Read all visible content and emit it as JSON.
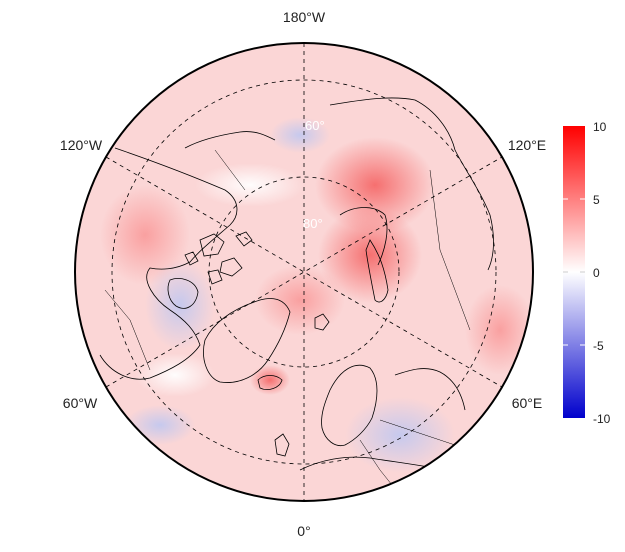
{
  "map": {
    "projection": "north polar stereographic",
    "lon_labels": {
      "top": "180°W",
      "upper_left": "120°W",
      "upper_right": "120°E",
      "lower_left": "60°W",
      "lower_right": "60°E",
      "bottom": "0°"
    },
    "lat_labels": {
      "inner": "80°",
      "outer": "60°"
    }
  },
  "colorbar": {
    "ticks": [
      "10",
      "5",
      "0",
      "-5",
      "-10"
    ],
    "range": [
      -10,
      10
    ],
    "colors": {
      "max": "#ff0000",
      "mid": "#ffffff",
      "min": "#0000cc"
    }
  },
  "colors": {
    "background_anomaly": "#fbd8d8",
    "warm": "#f88a8a",
    "cool": "#d4d8f4",
    "coast": "#000000",
    "grid": "#000000"
  }
}
